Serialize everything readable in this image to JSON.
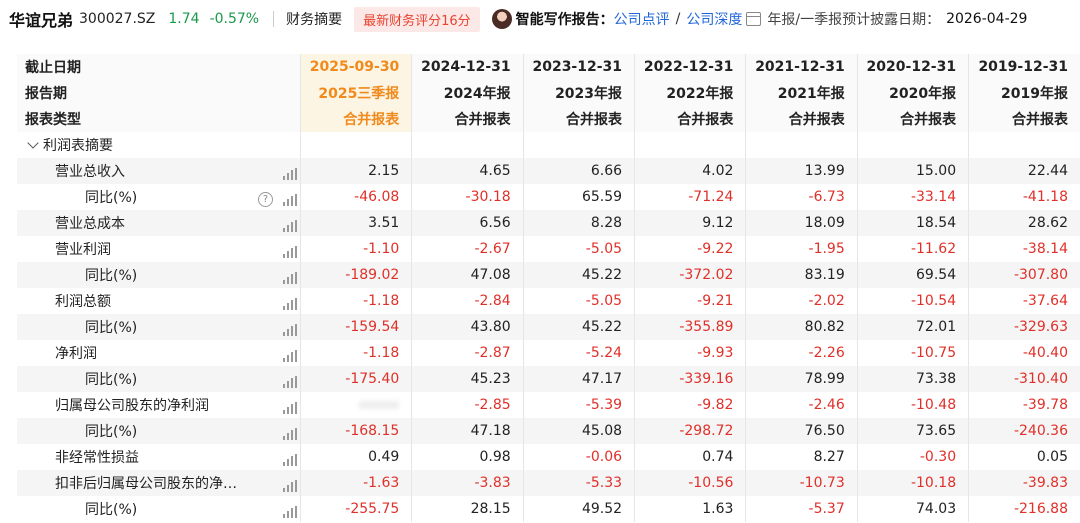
{
  "header": {
    "stock_name": "华谊兄弟",
    "stock_code": "300027.SZ",
    "price": "1.74",
    "change": "-0.57%",
    "tab_summary": "财务摘要",
    "score_badge": "最新财务评分16分",
    "report_label": "智能写作报告：",
    "link_review": "公司点评",
    "slash": "/",
    "link_depth": "公司深度",
    "disclose_label": "年报/一季报预计披露日期：",
    "disclose_date": "2026-04-29",
    "colors": {
      "green": "#1a9a4a",
      "red": "#e0302a",
      "accent": "#f08a1c",
      "link": "#2166d9"
    }
  },
  "table": {
    "header_rows": [
      {
        "label": "截止日期",
        "values": [
          "2025-09-30",
          "2024-12-31",
          "2023-12-31",
          "2022-12-31",
          "2021-12-31",
          "2020-12-31",
          "2019-12-31"
        ]
      },
      {
        "label": "报告期",
        "values": [
          "2025三季报",
          "2024年报",
          "2023年报",
          "2022年报",
          "2021年报",
          "2020年报",
          "2019年报"
        ]
      },
      {
        "label": "报表类型",
        "values": [
          "合并报表",
          "合并报表",
          "合并报表",
          "合并报表",
          "合并报表",
          "合并报表",
          "合并报表"
        ]
      }
    ],
    "section_title": "利润表摘要",
    "rows": [
      {
        "label": "营业总收入",
        "values": [
          "2.15",
          "4.65",
          "6.66",
          "4.02",
          "13.99",
          "15.00",
          "22.44"
        ]
      },
      {
        "label": "同比(%)",
        "sub": true,
        "help": true,
        "values": [
          "-46.08",
          "-30.18",
          "65.59",
          "-71.24",
          "-6.73",
          "-33.14",
          "-41.18"
        ]
      },
      {
        "label": "营业总成本",
        "values": [
          "3.51",
          "6.56",
          "8.28",
          "9.12",
          "18.09",
          "18.54",
          "28.62"
        ]
      },
      {
        "label": "营业利润",
        "values": [
          "-1.10",
          "-2.67",
          "-5.05",
          "-9.22",
          "-1.95",
          "-11.62",
          "-38.14"
        ]
      },
      {
        "label": "同比(%)",
        "sub": true,
        "values": [
          "-189.02",
          "47.08",
          "45.22",
          "-372.02",
          "83.19",
          "69.54",
          "-307.80"
        ]
      },
      {
        "label": "利润总额",
        "values": [
          "-1.18",
          "-2.84",
          "-5.05",
          "-9.21",
          "-2.02",
          "-10.54",
          "-37.64"
        ]
      },
      {
        "label": "同比(%)",
        "sub": true,
        "values": [
          "-159.54",
          "43.80",
          "45.22",
          "-355.89",
          "80.82",
          "72.01",
          "-329.63"
        ]
      },
      {
        "label": "净利润",
        "values": [
          "-1.18",
          "-2.87",
          "-5.24",
          "-9.93",
          "-2.26",
          "-10.75",
          "-40.40"
        ]
      },
      {
        "label": "同比(%)",
        "sub": true,
        "values": [
          "-175.40",
          "45.23",
          "47.17",
          "-339.16",
          "78.99",
          "73.38",
          "-310.40"
        ]
      },
      {
        "label": "归属母公司股东的净利润",
        "values": [
          "",
          "-2.85",
          "-5.39",
          "-9.82",
          "-2.46",
          "-10.48",
          "-39.78"
        ]
      },
      {
        "label": "同比(%)",
        "sub": true,
        "values": [
          "-168.15",
          "47.18",
          "45.08",
          "-298.72",
          "76.50",
          "73.65",
          "-240.36"
        ]
      },
      {
        "label": "非经常性损益",
        "values": [
          "0.49",
          "0.98",
          "-0.06",
          "0.74",
          "8.27",
          "-0.30",
          "0.05"
        ]
      },
      {
        "label": "扣非后归属母公司股东的净…",
        "values": [
          "-1.63",
          "-3.83",
          "-5.33",
          "-10.56",
          "-10.73",
          "-10.18",
          "-39.83"
        ]
      },
      {
        "label": "同比(%)",
        "sub": true,
        "values": [
          "-255.75",
          "28.15",
          "49.52",
          "1.63",
          "-5.37",
          "74.03",
          "-216.88"
        ]
      }
    ]
  }
}
